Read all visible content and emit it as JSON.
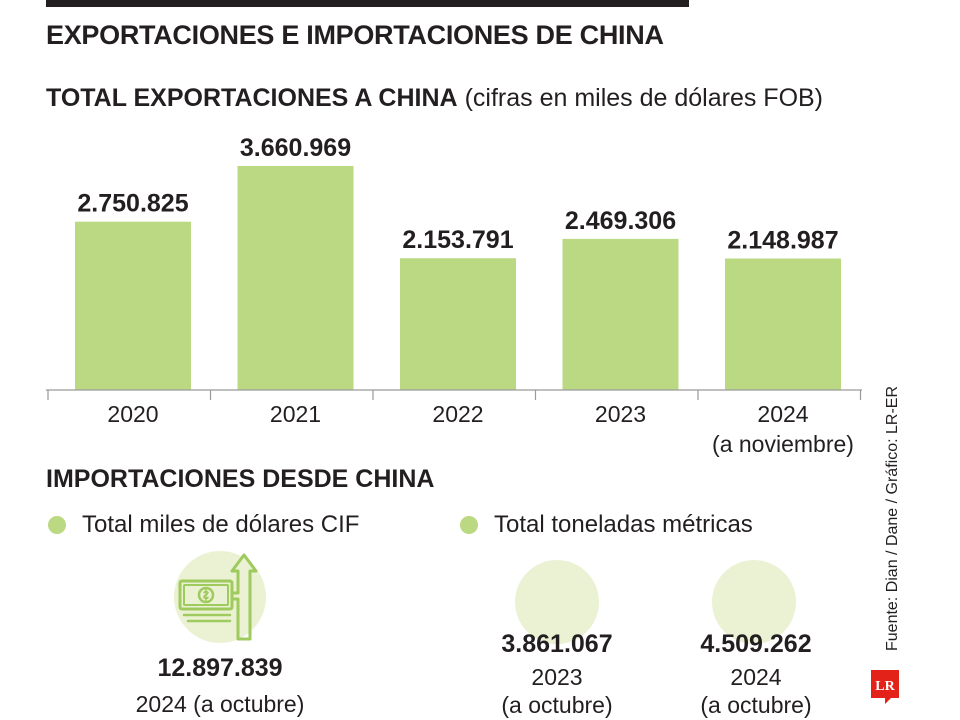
{
  "header": {
    "title": "EXPORTACIONES E IMPORTACIONES DE CHINA",
    "subtitle_bold": "TOTAL EXPORTACIONES A CHINA",
    "subtitle_light": "(cifras en miles de dólares FOB)"
  },
  "colors": {
    "bar": "#bbd982",
    "circle": "#eaf2d3",
    "text": "#231f20",
    "logo": "#e32319"
  },
  "chart_data": {
    "type": "bar",
    "title": "TOTAL EXPORTACIONES A CHINA",
    "subtitle": "(cifras en miles de dólares FOB)",
    "categories": [
      "2020",
      "2021",
      "2022",
      "2023",
      "2024"
    ],
    "category_notes": [
      "",
      "",
      "",
      "",
      "(a noviembre)"
    ],
    "values": [
      2750825,
      3660969,
      2153791,
      2469306,
      2148987
    ],
    "value_labels": [
      "2.750.825",
      "3.660.969",
      "2.153.791",
      "2.469.306",
      "2.148.987"
    ],
    "ylim": [
      0,
      3660969
    ],
    "grid": false,
    "legend": "none"
  },
  "imports": {
    "title": "IMPORTACIONES DESDE CHINA",
    "legend_money": "Total miles de dólares CIF",
    "legend_tons": "Total toneladas métricas",
    "money": {
      "value": "12.897.839",
      "period": "2024 (a octubre)",
      "icon": "money-growth-icon"
    },
    "tons": [
      {
        "value": "3.861.067",
        "year": "2023",
        "note": "(a octubre)"
      },
      {
        "value": "4.509.262",
        "year": "2024",
        "note": "(a octubre)"
      }
    ]
  },
  "source": "Fuente: Dian / Dane / Gráfico: LR-ER",
  "logo": {
    "text": "LR",
    "icon": "lr-logo-icon"
  }
}
